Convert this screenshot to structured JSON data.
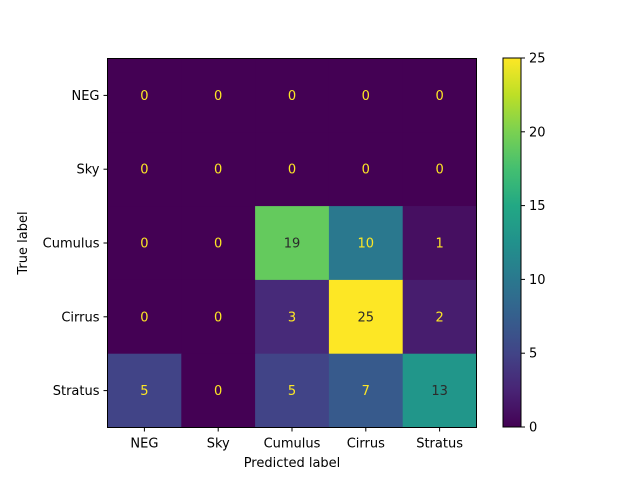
{
  "chart_data": {
    "type": "heatmap",
    "title": "",
    "xlabel": "Predicted label",
    "ylabel": "True label",
    "x_categories": [
      "NEG",
      "Sky",
      "Cumulus",
      "Cirrus",
      "Stratus"
    ],
    "y_categories": [
      "NEG",
      "Sky",
      "Cumulus",
      "Cirrus",
      "Stratus"
    ],
    "matrix": [
      [
        0,
        0,
        0,
        0,
        0
      ],
      [
        0,
        0,
        0,
        0,
        0
      ],
      [
        0,
        0,
        19,
        10,
        1
      ],
      [
        0,
        0,
        3,
        25,
        2
      ],
      [
        5,
        0,
        5,
        7,
        13
      ]
    ],
    "value_range": [
      0,
      25
    ],
    "colormap": "viridis",
    "colorbar_ticks": [
      0,
      5,
      10,
      15,
      20,
      25
    ],
    "grid": false
  }
}
